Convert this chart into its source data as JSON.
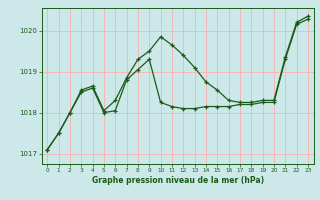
{
  "x": [
    0,
    1,
    2,
    3,
    4,
    5,
    6,
    7,
    8,
    9,
    10,
    11,
    12,
    13,
    14,
    15,
    16,
    17,
    18,
    19,
    20,
    21,
    22,
    23
  ],
  "series1": [
    1017.1,
    1017.5,
    1018.0,
    1018.55,
    1018.65,
    1018.05,
    1018.3,
    1018.85,
    1019.3,
    1019.5,
    1019.85,
    1019.65,
    1019.4,
    1019.1,
    1018.75,
    1018.55,
    1018.3,
    1018.25,
    1018.25,
    1018.3,
    1018.3,
    1019.35,
    1020.2,
    1020.35
  ],
  "series2": [
    1017.1,
    1017.5,
    1018.0,
    1018.5,
    1018.6,
    1018.0,
    1018.05,
    1018.8,
    1019.05,
    1019.3,
    1018.25,
    1018.15,
    1018.1,
    1018.1,
    1018.15,
    1018.15,
    1018.15,
    1018.2,
    1018.2,
    1018.25,
    1018.25,
    1019.3,
    1020.15,
    1020.28
  ],
  "bg_color": "#cce8e8",
  "grid_color": "#f5b8b8",
  "line_color": "#1a5c1a",
  "xlabel": "Graphe pression niveau de la mer (hPa)",
  "ylim": [
    1016.75,
    1020.55
  ],
  "yticks": [
    1017,
    1018,
    1019,
    1020
  ],
  "xticks": [
    0,
    1,
    2,
    3,
    4,
    5,
    6,
    7,
    8,
    9,
    10,
    11,
    12,
    13,
    14,
    15,
    16,
    17,
    18,
    19,
    20,
    21,
    22,
    23
  ]
}
